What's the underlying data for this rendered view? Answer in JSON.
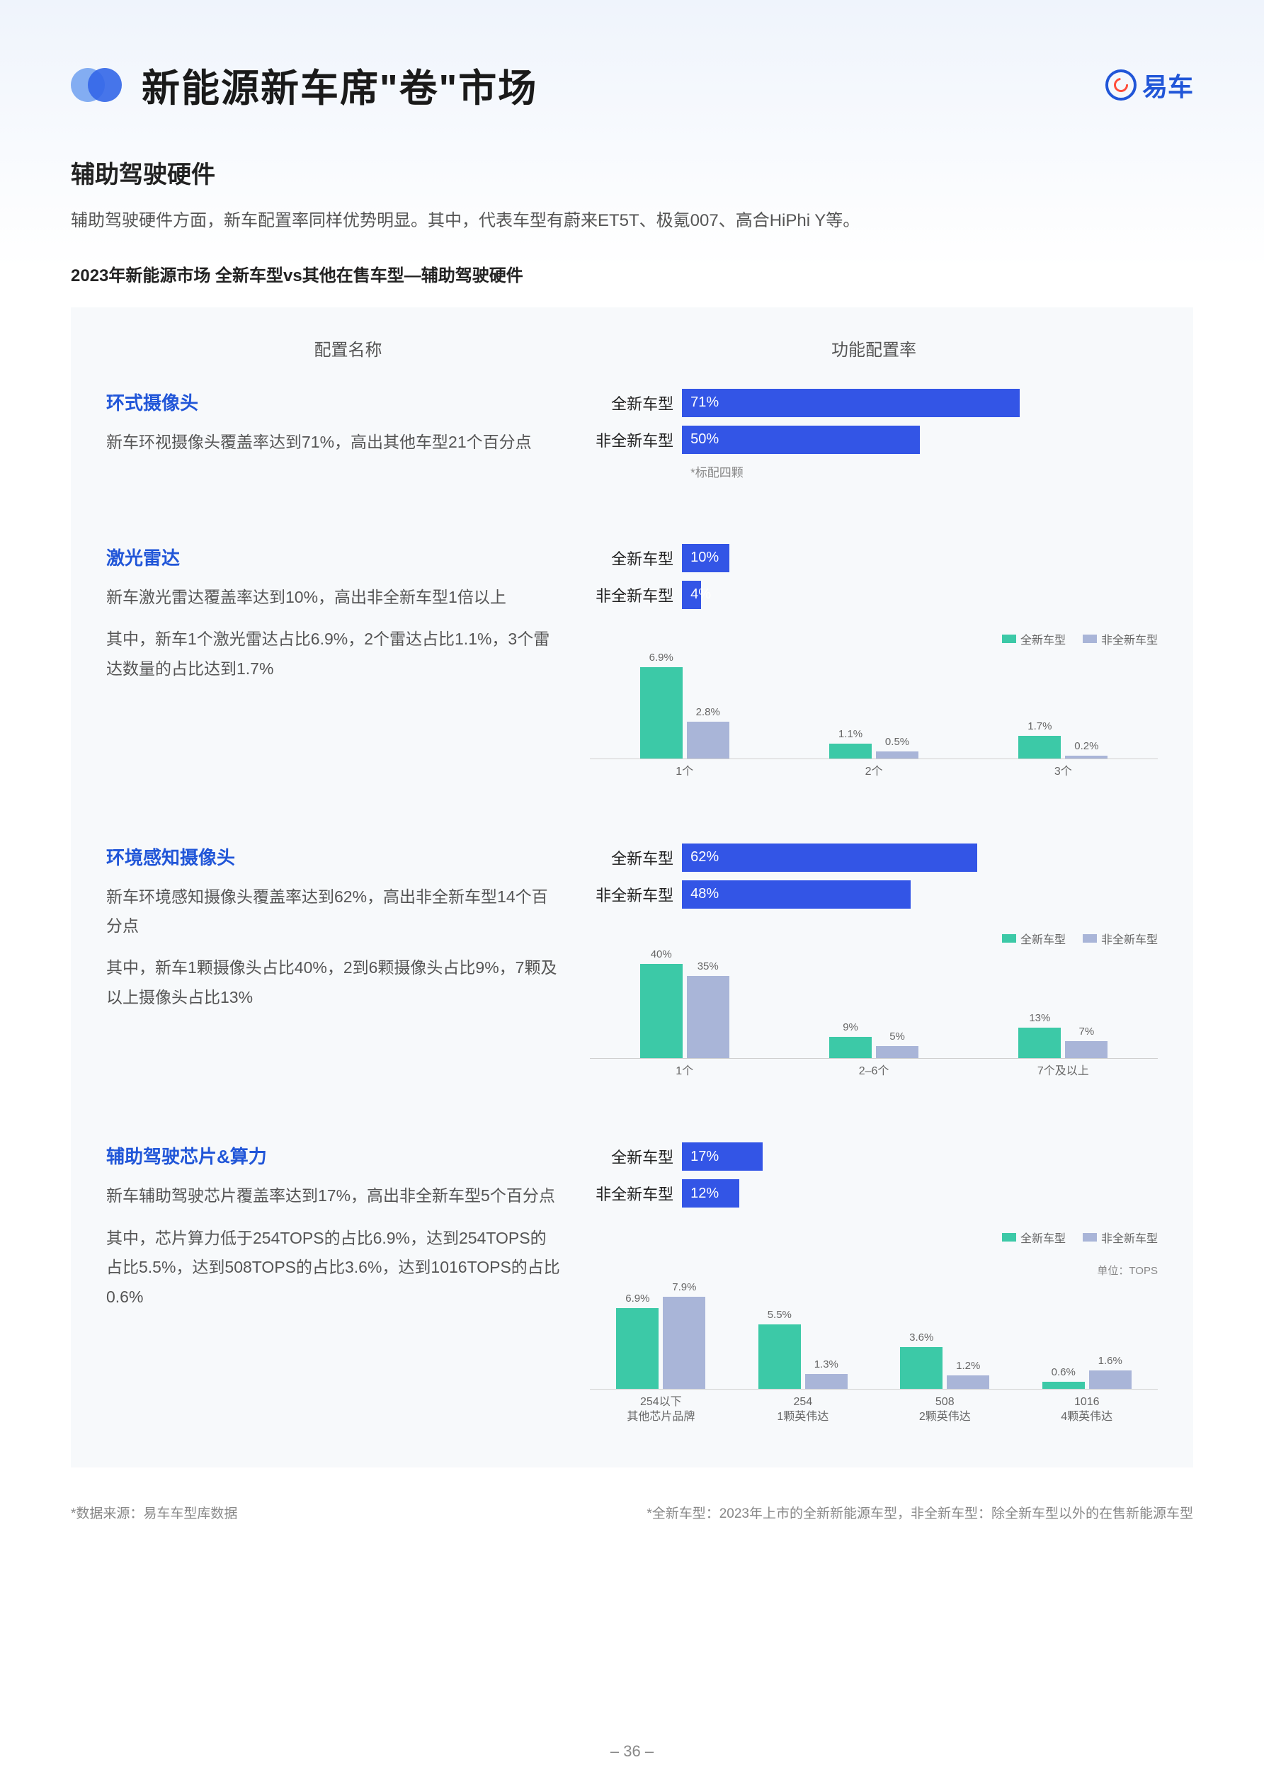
{
  "header": {
    "title": "新能源新车席\"卷\"市场",
    "logo_text": "易车"
  },
  "subtitle": "辅助驾驶硬件",
  "description": "辅助驾驶硬件方面，新车配置率同样优势明显。其中，代表车型有蔚来ET5T、极氪007、高合HiPhi Y等。",
  "chart_title": "2023年新能源市场 全新车型vs其他在售车型—辅助驾驶硬件",
  "col_headers": {
    "left": "配置名称",
    "right": "功能配置率"
  },
  "legend": {
    "a": "全新车型",
    "b": "非全新车型"
  },
  "bar_labels": {
    "new": "全新车型",
    "other": "非全新车型"
  },
  "colors": {
    "hbar": "#3355e6",
    "series_a": "#3cc9a7",
    "series_b": "#a9b5d8",
    "accent": "#2156d8"
  },
  "sections": [
    {
      "name": "环式摄像头",
      "desc1": "新车环视摄像头覆盖率达到71%，高出其他车型21个百分点",
      "hbar": {
        "new": 71,
        "other": 50,
        "max": 100,
        "note": "*标配四颗"
      }
    },
    {
      "name": "激光雷达",
      "desc1": "新车激光雷达覆盖率达到10%，高出非全新车型1倍以上",
      "desc2": "其中，新车1个激光雷达占比6.9%，2个雷达占比1.1%，3个雷达数量的占比达到1.7%",
      "hbar": {
        "new": 10,
        "other": 4,
        "max": 100
      },
      "mini": {
        "ymax": 8,
        "categories": [
          "1个",
          "2个",
          "3个"
        ],
        "a": [
          6.9,
          1.1,
          1.7
        ],
        "b": [
          2.8,
          0.5,
          0.2
        ]
      }
    },
    {
      "name": "环境感知摄像头",
      "desc1": "新车环境感知摄像头覆盖率达到62%，高出非全新车型14个百分点",
      "desc2": "其中，新车1颗摄像头占比40%，2到6颗摄像头占比9%，7颗及以上摄像头占比13%",
      "hbar": {
        "new": 62,
        "other": 48,
        "max": 100
      },
      "mini": {
        "ymax": 45,
        "categories": [
          "1个",
          "2–6个",
          "7个及以上"
        ],
        "a": [
          40,
          9,
          13
        ],
        "b": [
          35,
          5,
          7
        ]
      }
    },
    {
      "name": "辅助驾驶芯片&算力",
      "desc1": "新车辅助驾驶芯片覆盖率达到17%，高出非全新车型5个百分点",
      "desc2": "其中，芯片算力低于254TOPS的占比6.9%，达到254TOPS的占比5.5%，达到508TOPS的占比3.6%，达到1016TOPS的占比0.6%",
      "hbar": {
        "new": 17,
        "other": 12,
        "max": 100
      },
      "mini": {
        "ymax": 9,
        "unit": "单位：TOPS",
        "categories": [
          "254以下",
          "254",
          "508",
          "1016"
        ],
        "sublabels": [
          "其他芯片品牌",
          "1颗英伟达",
          "2颗英伟达",
          "4颗英伟达"
        ],
        "a": [
          6.9,
          5.5,
          3.6,
          0.6
        ],
        "b": [
          7.9,
          1.3,
          1.2,
          1.6
        ]
      }
    }
  ],
  "footnotes": {
    "left": "*数据来源：易车车型库数据",
    "right": "*全新车型：2023年上市的全新新能源车型，非全新车型：除全新车型以外的在售新能源车型"
  },
  "page_number": "– 36 –"
}
